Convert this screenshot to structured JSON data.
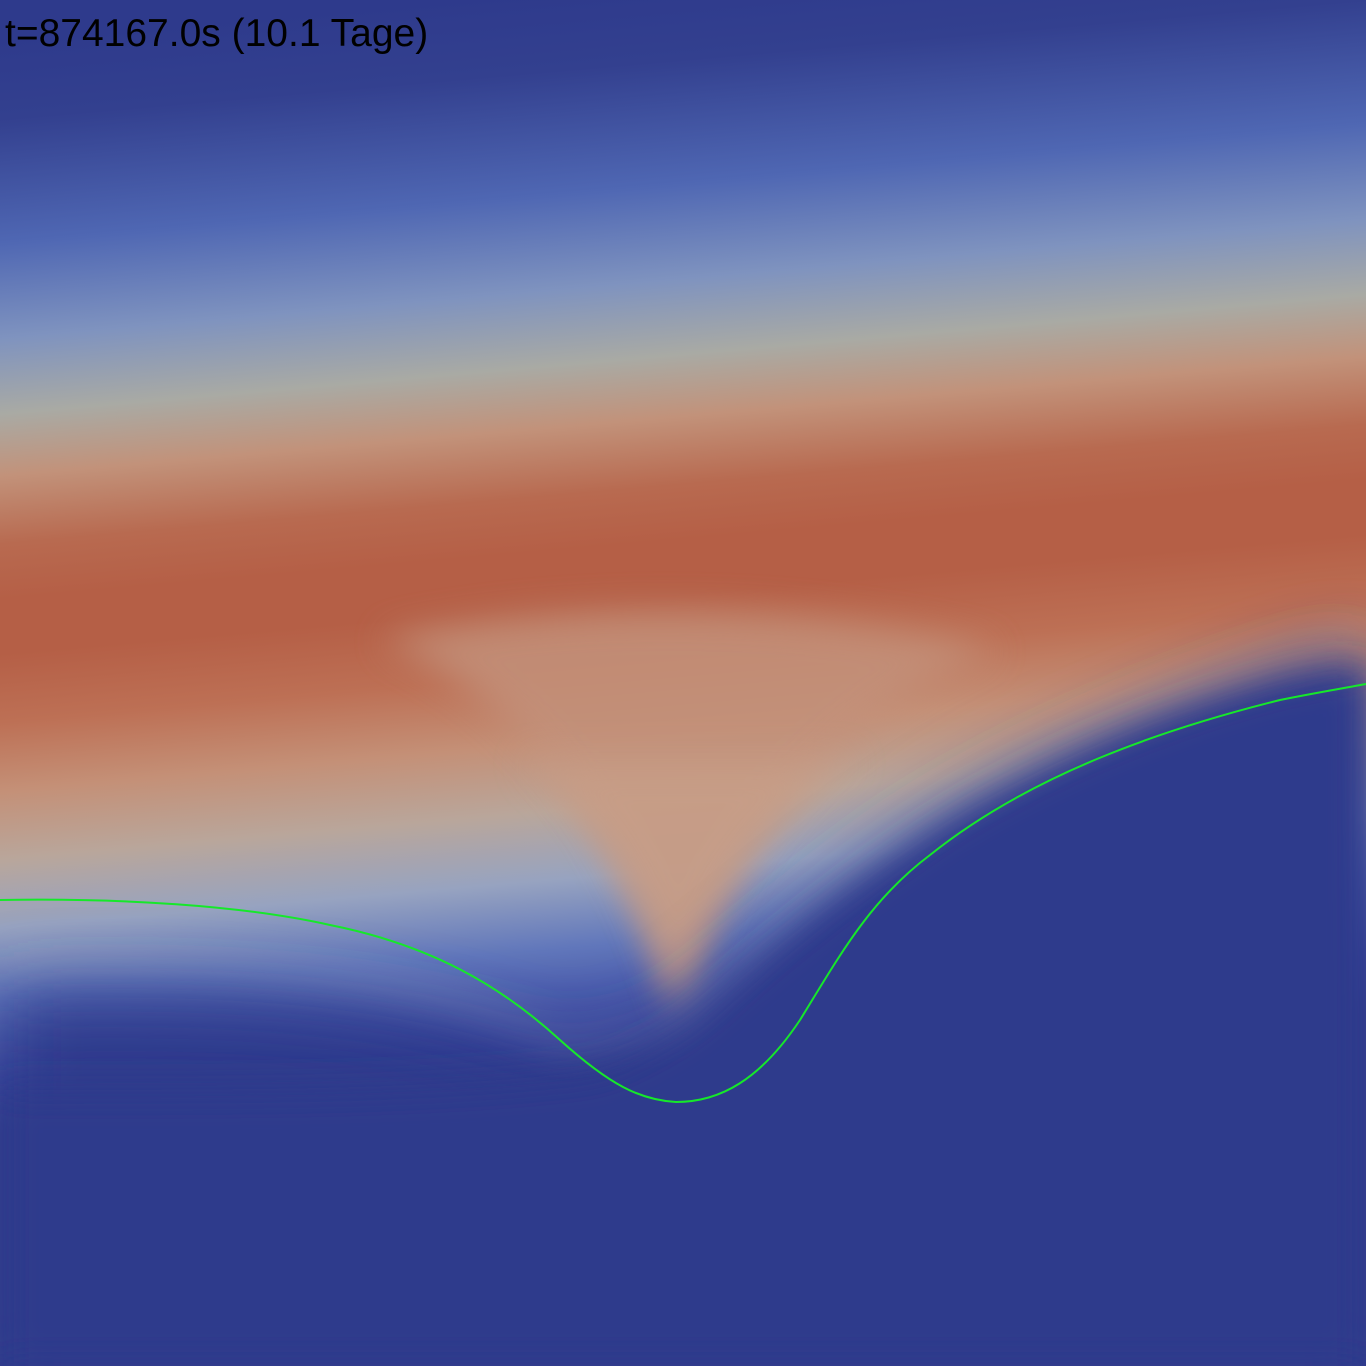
{
  "time_label": "t=874167.0s (10.1 Tage)",
  "colors": {
    "background_low": "#2e3a8c",
    "band_blue": "#4f67b3",
    "band_grey": "#a9a9a3",
    "band_high": "#b55f46",
    "isoline": "#16e82a"
  },
  "isoline": {
    "name": "green contour line"
  }
}
